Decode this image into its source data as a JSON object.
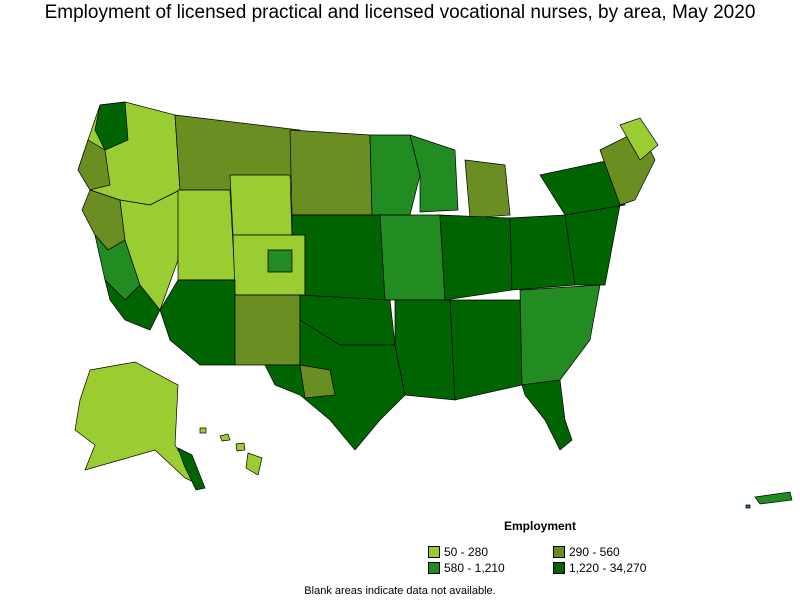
{
  "title": "Employment of licensed practical and licensed vocational nurses, by area, May 2020",
  "legend": {
    "title": "Employment",
    "items": [
      {
        "label": "50 - 280",
        "color": "#9acd32"
      },
      {
        "label": "290 - 560",
        "color": "#6b8e23"
      },
      {
        "label": "580 - 1,210",
        "color": "#228b22"
      },
      {
        "label": "1,220 - 34,270",
        "color": "#006400"
      }
    ]
  },
  "note": "Blank areas indicate data not available.",
  "colors": {
    "outline": "#000000",
    "class_1": "#9acd32",
    "class_2": "#6b8e23",
    "class_3": "#228b22",
    "class_4": "#006400"
  }
}
